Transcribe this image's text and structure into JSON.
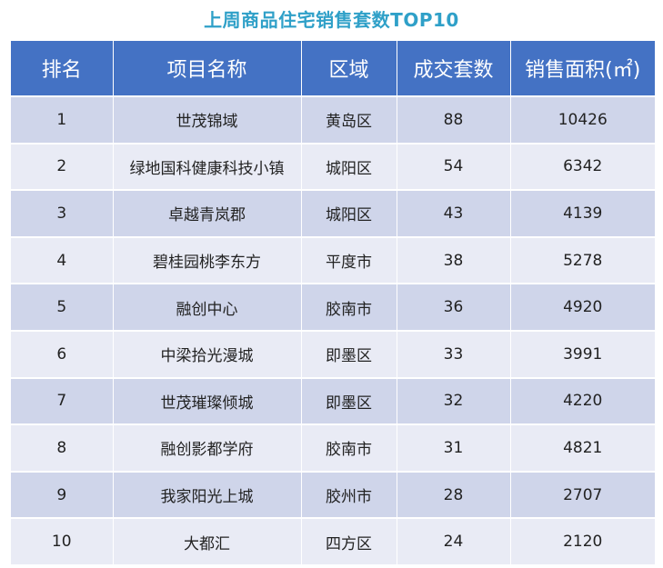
{
  "title": "上周商品住宅销售套数TOP10",
  "columns": [
    "排名",
    "项目名称",
    "区域",
    "成交套数",
    "销售面积(㎡)"
  ],
  "rows": [
    {
      "rank": "1",
      "project": "世茂锦域",
      "district": "黄岛区",
      "units": "88",
      "area": "10426"
    },
    {
      "rank": "2",
      "project": "绿地国科健康科技小镇",
      "district": "城阳区",
      "units": "54",
      "area": "6342"
    },
    {
      "rank": "3",
      "project": "卓越青岚郡",
      "district": "城阳区",
      "units": "43",
      "area": "4139"
    },
    {
      "rank": "4",
      "project": "碧桂园桃李东方",
      "district": "平度市",
      "units": "38",
      "area": "5278"
    },
    {
      "rank": "5",
      "project": "融创中心",
      "district": "胶南市",
      "units": "36",
      "area": "4920"
    },
    {
      "rank": "6",
      "project": "中梁拾光漫城",
      "district": "即墨区",
      "units": "33",
      "area": "3991"
    },
    {
      "rank": "7",
      "project": "世茂璀璨倾城",
      "district": "即墨区",
      "units": "32",
      "area": "4220"
    },
    {
      "rank": "8",
      "project": "融创影都学府",
      "district": "胶南市",
      "units": "31",
      "area": "4821"
    },
    {
      "rank": "9",
      "project": "我家阳光上城",
      "district": "胶州市",
      "units": "28",
      "area": "2707"
    },
    {
      "rank": "10",
      "project": "大都汇",
      "district": "四方区",
      "units": "24",
      "area": "2120"
    }
  ],
  "colors": {
    "title": "#2fa0c8",
    "header_bg": "#4472c4",
    "row_odd": "#cfd5ea",
    "row_even": "#e9ebf5"
  }
}
